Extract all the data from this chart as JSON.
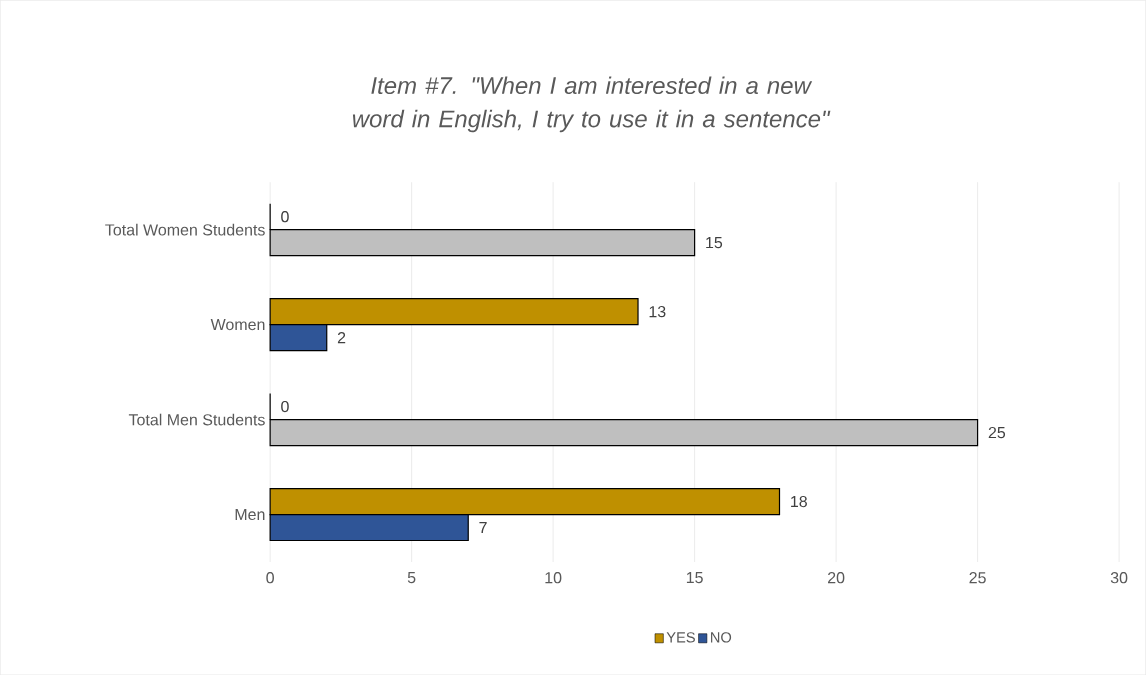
{
  "chart_data": {
    "type": "bar",
    "orientation": "horizontal",
    "title": "Item #7. \"When I am interested in a new word in English, I try to use it in a sentence\"",
    "categories": [
      "Total Women Students",
      "Women",
      "Total Men Students",
      "Men"
    ],
    "series": [
      {
        "name": "YES",
        "color": "#bf9000",
        "values": [
          0,
          13,
          0,
          18
        ]
      },
      {
        "name": "NO",
        "color": "#2f5597",
        "colors": [
          "#bfbfbf",
          "#2f5597",
          "#bfbfbf",
          "#2f5597"
        ],
        "values": [
          15,
          2,
          25,
          7
        ]
      }
    ],
    "xlim": [
      0,
      30
    ],
    "xticks": [
      0,
      5,
      10,
      15,
      20,
      25,
      30
    ],
    "grid": "x",
    "data_labels": true,
    "legend": "bottom"
  }
}
